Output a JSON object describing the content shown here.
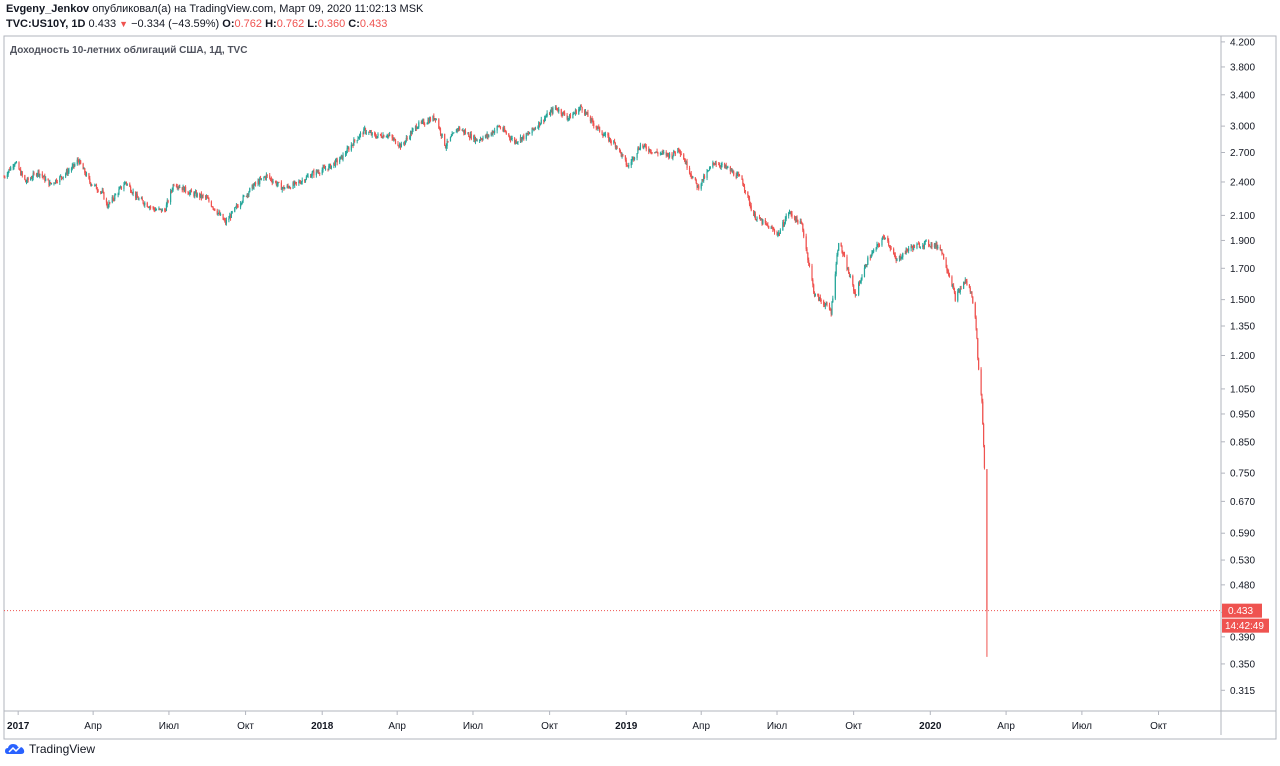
{
  "header": {
    "author": "Evgeny_Jenkov",
    "published": "опубликовал(а) на TradingView.com, Март 09, 2020 11:02:13 MSK",
    "symbol": "TVC:US10Y, 1D",
    "last": "0.433",
    "change": "−0.334 (−43.59%)",
    "o_label": "O:",
    "o_value": "0.762",
    "h_label": "H:",
    "h_value": "0.762",
    "l_label": "L:",
    "l_value": "0.360",
    "c_label": "C:",
    "c_value": "0.433"
  },
  "footer": {
    "brand": "TradingView"
  },
  "colors": {
    "up": "#26a69a",
    "down": "#ef5350",
    "axis": "#131722",
    "grid_border": "#b2b5be"
  },
  "chart_data": {
    "type": "line",
    "title": "Доходность 10-летних облигаций США, 1Д, TVC",
    "y_scale": "log",
    "ylim": [
      0.29,
      4.3
    ],
    "y_ticks": [
      4.2,
      3.8,
      3.4,
      3.0,
      2.7,
      2.4,
      2.1,
      1.9,
      1.7,
      1.5,
      1.35,
      1.2,
      1.05,
      0.95,
      0.85,
      0.75,
      0.67,
      0.59,
      0.53,
      0.48,
      0.43,
      0.39,
      0.35,
      0.315
    ],
    "y_tick_labels": [
      "4.200",
      "3.800",
      "3.400",
      "3.000",
      "2.700",
      "2.400",
      "2.100",
      "1.900",
      "1.700",
      "1.500",
      "1.350",
      "1.200",
      "1.050",
      "0.950",
      "0.850",
      "0.750",
      "0.670",
      "0.590",
      "0.530",
      "0.480",
      "0.430",
      "0.390",
      "0.350",
      "0.315"
    ],
    "x_range": [
      "2016-12-15",
      "2020-12-15"
    ],
    "x_ticks": [
      {
        "date": "2017-01-01",
        "label": "2017",
        "bold": true
      },
      {
        "date": "2017-04-01",
        "label": "Апр",
        "bold": false
      },
      {
        "date": "2017-07-01",
        "label": "Июл",
        "bold": false
      },
      {
        "date": "2017-10-01",
        "label": "Окт",
        "bold": false
      },
      {
        "date": "2018-01-01",
        "label": "2018",
        "bold": true
      },
      {
        "date": "2018-04-01",
        "label": "Апр",
        "bold": false
      },
      {
        "date": "2018-07-01",
        "label": "Июл",
        "bold": false
      },
      {
        "date": "2018-10-01",
        "label": "Окт",
        "bold": false
      },
      {
        "date": "2019-01-01",
        "label": "2019",
        "bold": true
      },
      {
        "date": "2019-04-01",
        "label": "Апр",
        "bold": false
      },
      {
        "date": "2019-07-01",
        "label": "Июл",
        "bold": false
      },
      {
        "date": "2019-10-01",
        "label": "Окт",
        "bold": false
      },
      {
        "date": "2020-01-01",
        "label": "2020",
        "bold": true
      },
      {
        "date": "2020-04-01",
        "label": "Апр",
        "bold": false
      },
      {
        "date": "2020-07-01",
        "label": "Июл",
        "bold": false
      },
      {
        "date": "2020-10-01",
        "label": "Окт",
        "bold": false
      }
    ],
    "series": [
      {
        "points": [
          [
            "2016-12-15",
            2.45
          ],
          [
            "2016-12-28",
            2.6
          ],
          [
            "2017-01-10",
            2.4
          ],
          [
            "2017-01-25",
            2.5
          ],
          [
            "2017-02-08",
            2.38
          ],
          [
            "2017-02-22",
            2.45
          ],
          [
            "2017-03-08",
            2.55
          ],
          [
            "2017-03-14",
            2.62
          ],
          [
            "2017-03-28",
            2.4
          ],
          [
            "2017-04-12",
            2.3
          ],
          [
            "2017-04-18",
            2.18
          ],
          [
            "2017-05-10",
            2.4
          ],
          [
            "2017-05-24",
            2.25
          ],
          [
            "2017-06-14",
            2.15
          ],
          [
            "2017-06-26",
            2.14
          ],
          [
            "2017-07-07",
            2.39
          ],
          [
            "2017-07-26",
            2.3
          ],
          [
            "2017-08-15",
            2.25
          ],
          [
            "2017-09-07",
            2.04
          ],
          [
            "2017-09-25",
            2.22
          ],
          [
            "2017-10-10",
            2.36
          ],
          [
            "2017-10-26",
            2.46
          ],
          [
            "2017-11-15",
            2.34
          ],
          [
            "2017-12-01",
            2.38
          ],
          [
            "2017-12-20",
            2.48
          ],
          [
            "2018-01-10",
            2.55
          ],
          [
            "2018-01-25",
            2.65
          ],
          [
            "2018-02-09",
            2.83
          ],
          [
            "2018-02-21",
            2.95
          ],
          [
            "2018-03-05",
            2.88
          ],
          [
            "2018-03-20",
            2.9
          ],
          [
            "2018-04-06",
            2.77
          ],
          [
            "2018-04-24",
            3.0
          ],
          [
            "2018-05-17",
            3.11
          ],
          [
            "2018-05-29",
            2.77
          ],
          [
            "2018-06-13",
            2.98
          ],
          [
            "2018-07-05",
            2.84
          ],
          [
            "2018-07-20",
            2.89
          ],
          [
            "2018-08-01",
            3.0
          ],
          [
            "2018-08-20",
            2.82
          ],
          [
            "2018-09-05",
            2.9
          ],
          [
            "2018-09-25",
            3.1
          ],
          [
            "2018-10-08",
            3.23
          ],
          [
            "2018-10-24",
            3.1
          ],
          [
            "2018-11-08",
            3.24
          ],
          [
            "2018-11-20",
            3.06
          ],
          [
            "2018-12-05",
            2.9
          ],
          [
            "2018-12-20",
            2.78
          ],
          [
            "2019-01-03",
            2.55
          ],
          [
            "2019-01-18",
            2.78
          ],
          [
            "2019-02-05",
            2.7
          ],
          [
            "2019-02-25",
            2.67
          ],
          [
            "2019-03-05",
            2.75
          ],
          [
            "2019-03-22",
            2.44
          ],
          [
            "2019-03-28",
            2.35
          ],
          [
            "2019-04-17",
            2.6
          ],
          [
            "2019-05-03",
            2.53
          ],
          [
            "2019-05-20",
            2.42
          ],
          [
            "2019-06-03",
            2.1
          ],
          [
            "2019-06-20",
            2.01
          ],
          [
            "2019-07-03",
            1.95
          ],
          [
            "2019-07-15",
            2.13
          ],
          [
            "2019-07-31",
            2.02
          ],
          [
            "2019-08-15",
            1.53
          ],
          [
            "2019-08-28",
            1.47
          ],
          [
            "2019-09-04",
            1.43
          ],
          [
            "2019-09-13",
            1.9
          ],
          [
            "2019-10-03",
            1.53
          ],
          [
            "2019-10-18",
            1.76
          ],
          [
            "2019-11-08",
            1.94
          ],
          [
            "2019-11-21",
            1.75
          ],
          [
            "2019-12-06",
            1.84
          ],
          [
            "2019-12-27",
            1.88
          ],
          [
            "2020-01-13",
            1.85
          ],
          [
            "2020-01-27",
            1.6
          ],
          [
            "2020-01-31",
            1.51
          ],
          [
            "2020-02-12",
            1.62
          ],
          [
            "2020-02-20",
            1.53
          ],
          [
            "2020-02-25",
            1.35
          ],
          [
            "2020-02-28",
            1.13
          ],
          [
            "2020-03-03",
            1.0
          ],
          [
            "2020-03-06",
            0.77
          ],
          [
            "2020-03-09",
            0.433
          ]
        ]
      }
    ],
    "last_price_label": "0.433",
    "countdown_label": "14:42:49",
    "last_candle": {
      "date": "2020-03-09",
      "open": 0.762,
      "high": 0.762,
      "low": 0.36,
      "close": 0.433
    }
  }
}
